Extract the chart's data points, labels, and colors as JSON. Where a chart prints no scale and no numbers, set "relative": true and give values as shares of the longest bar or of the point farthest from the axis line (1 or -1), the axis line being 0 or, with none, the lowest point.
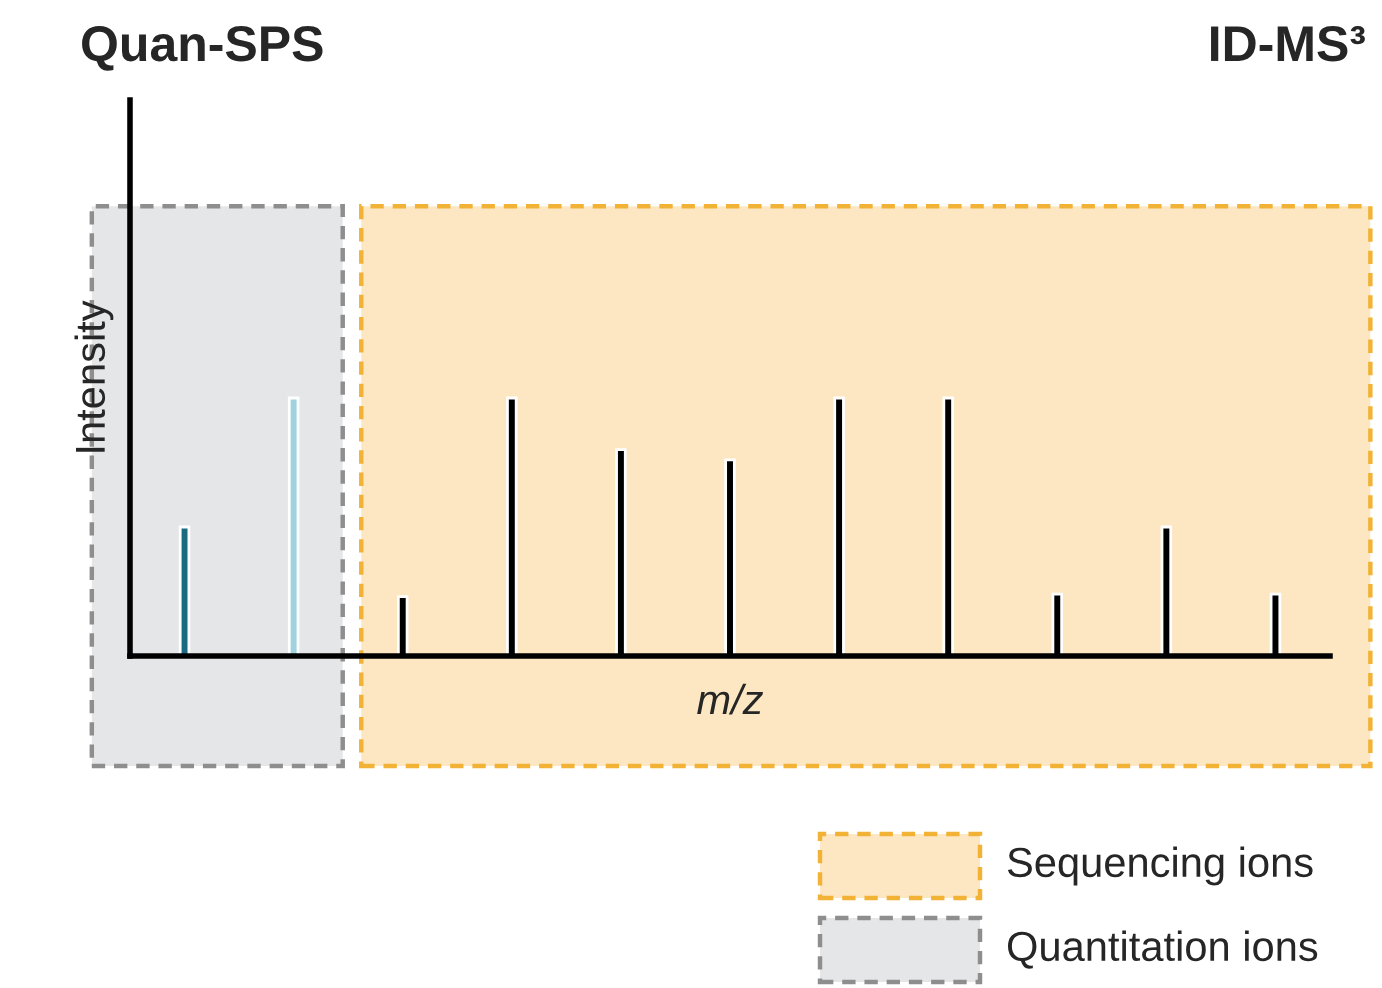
{
  "chart_data": {
    "type": "bar",
    "relative": true,
    "title": "Quan-SPS",
    "annotations": [
      "ID-MS³",
      "Sequencing ions",
      "Quantitation ions"
    ],
    "xlabel": "m/z",
    "ylabel": "Intensity",
    "categories": [
      null,
      null,
      null,
      null,
      null,
      null,
      null,
      null,
      null,
      null,
      null
    ],
    "values": [
      0.5,
      1,
      0.23,
      1,
      0.8,
      0.76,
      1,
      1,
      0.24,
      0.5,
      0.24
    ],
    "colors": [
      "#1a6b80",
      "#9fd3df",
      "#000000",
      "#000000",
      "#000000",
      "#000000",
      "#000000",
      "#000000",
      "#000000",
      "#000000",
      "#000000"
    ]
  }
}
